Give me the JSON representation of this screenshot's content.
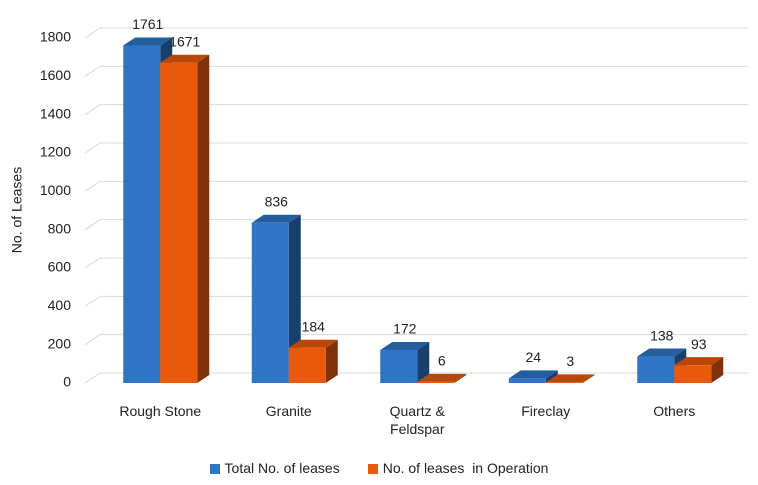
{
  "chart_data": {
    "type": "bar3d",
    "y_axis_label": "No. of Leases",
    "categories": [
      "Rough Stone",
      "Granite",
      "Quartz & Feldspar",
      "Fireclay",
      "Others"
    ],
    "series": [
      {
        "name": "Total No. of leases",
        "color": "#2e75c6",
        "values": [
          1761,
          836,
          172,
          24,
          138
        ]
      },
      {
        "name": "No. of leases  in Operation",
        "color": "#e8590c",
        "values": [
          1671,
          184,
          6,
          3,
          93
        ]
      }
    ],
    "ylim": [
      0,
      1800
    ],
    "yticks": [
      0,
      200,
      400,
      600,
      800,
      1000,
      1200,
      1400,
      1600,
      1800
    ],
    "grid": true,
    "legend": "bottom"
  }
}
